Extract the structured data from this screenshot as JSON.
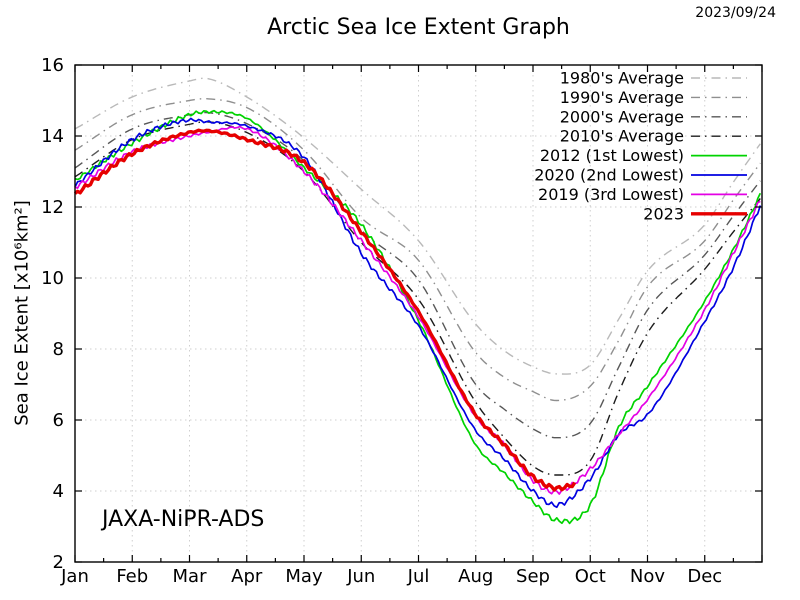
{
  "header": {
    "title": "Arctic Sea Ice Extent Graph",
    "date": "2023/09/24"
  },
  "watermark": "JAXA-NiPR-ADS",
  "axes": {
    "y_title": "Sea Ice Extent [x10⁶km²]"
  },
  "chart_data": {
    "type": "line",
    "title": "Arctic Sea Ice Extent Graph",
    "date_annotation": "2023/09/24",
    "watermark": "JAXA-NiPR-ADS",
    "xlabel": "",
    "ylabel": "Sea Ice Extent [x10⁶km²]",
    "x_tick_labels": [
      "Jan",
      "Feb",
      "Mar",
      "Apr",
      "May",
      "Jun",
      "Jul",
      "Aug",
      "Sep",
      "Oct",
      "Nov",
      "Dec"
    ],
    "y_ticks": [
      2,
      4,
      6,
      8,
      10,
      12,
      14,
      16
    ],
    "ylim": [
      2,
      16
    ],
    "xlim_months": [
      0,
      12
    ],
    "grid": true,
    "legend_position": "top-right",
    "x_knots_months": [
      0,
      1,
      2,
      2.3,
      3,
      4,
      5,
      6,
      7,
      7.5,
      8,
      8.4,
      9,
      9.5,
      10,
      11,
      11.5,
      12
    ],
    "series": [
      {
        "name": "1980's Average",
        "color": "#b9b9b9",
        "style": "dashdot",
        "width": 1.4,
        "wiggle": 0,
        "values": [
          14.2,
          15.1,
          15.55,
          15.62,
          15.1,
          13.95,
          12.5,
          11.05,
          8.7,
          7.95,
          7.5,
          7.3,
          7.55,
          8.85,
          10.2,
          11.5,
          12.7,
          13.85
        ]
      },
      {
        "name": "1990's Average",
        "color": "#8f8f8f",
        "style": "dashdot",
        "width": 1.4,
        "wiggle": 0,
        "values": [
          13.6,
          14.6,
          15.0,
          15.05,
          14.8,
          13.6,
          11.7,
          10.5,
          7.9,
          7.2,
          6.8,
          6.55,
          6.95,
          8.25,
          9.75,
          11.05,
          12.2,
          13.3
        ]
      },
      {
        "name": "2000's Average",
        "color": "#575757",
        "style": "dashdot",
        "width": 1.4,
        "wiggle": 0,
        "values": [
          13.1,
          14.2,
          14.6,
          14.66,
          14.35,
          13.3,
          11.35,
          9.95,
          7.0,
          6.3,
          5.75,
          5.5,
          5.9,
          7.5,
          9.1,
          10.65,
          11.75,
          12.8
        ]
      },
      {
        "name": "2010's Average",
        "color": "#1c1c1c",
        "style": "dashdot",
        "width": 1.4,
        "wiggle": 0,
        "values": [
          12.85,
          13.9,
          14.33,
          14.4,
          14.1,
          13.0,
          11.0,
          9.4,
          6.5,
          5.5,
          4.7,
          4.45,
          4.85,
          6.8,
          8.45,
          10.25,
          11.3,
          12.3
        ]
      },
      {
        "name": "2012 (1st Lowest)",
        "color": "#00d300",
        "style": "solid",
        "width": 1.7,
        "wiggle": 0.045,
        "values": [
          12.75,
          13.8,
          14.6,
          14.68,
          14.5,
          13.1,
          11.5,
          8.8,
          5.3,
          4.5,
          3.7,
          3.18,
          3.6,
          5.8,
          6.95,
          9.35,
          10.8,
          12.45
        ]
      },
      {
        "name": "2020 (2nd Lowest)",
        "color": "#0000e0",
        "style": "solid",
        "width": 1.7,
        "wiggle": 0.045,
        "values": [
          12.6,
          13.9,
          14.45,
          14.4,
          14.28,
          13.4,
          10.7,
          8.65,
          5.7,
          4.9,
          4.0,
          3.6,
          4.35,
          5.6,
          6.15,
          8.78,
          10.3,
          12.15
        ]
      },
      {
        "name": "2019 (3rd Lowest)",
        "color": "#e400e4",
        "style": "solid",
        "width": 1.7,
        "wiggle": 0.045,
        "values": [
          12.55,
          13.55,
          14.0,
          14.1,
          14.2,
          13.0,
          11.05,
          8.9,
          6.1,
          5.3,
          4.3,
          3.97,
          4.62,
          5.6,
          6.58,
          9.1,
          10.7,
          12.3
        ]
      },
      {
        "name": "2023",
        "color": "#e60000",
        "style": "solid",
        "width": 3.4,
        "wiggle": 0.04,
        "x_knots_months": [
          0,
          1,
          2,
          2.3,
          3,
          4,
          5,
          6,
          7,
          7.5,
          8,
          8.4,
          8.75
        ],
        "values": [
          12.35,
          13.5,
          14.1,
          14.15,
          13.9,
          13.25,
          11.3,
          9.05,
          6.15,
          5.3,
          4.4,
          4.08,
          4.2
        ]
      }
    ]
  }
}
